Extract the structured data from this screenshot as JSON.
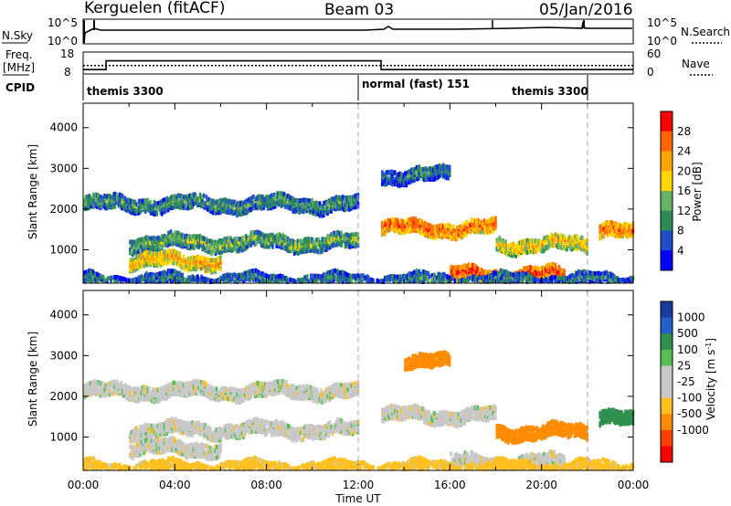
{
  "header": {
    "station": "Kerguelen (fitACF)",
    "beam": "Beam 03",
    "date": "05/Jan/2016"
  },
  "noise_panel": {
    "left_label": "N.Sky",
    "right_label": "N.Search",
    "left_ticks": [
      "10^5",
      "10^0"
    ],
    "right_ticks": [
      "10^5",
      "10^0"
    ]
  },
  "freq_panel": {
    "left_label_line1": "Freq.",
    "left_label_line2": "[MHz]",
    "right_label": "Nave",
    "left_ticks": [
      "18",
      "8"
    ],
    "right_ticks": [
      "60",
      "0"
    ],
    "freq_steps": [
      {
        "from_hour": 0.0,
        "to_hour": 1.0,
        "mhz": 10.0
      },
      {
        "from_hour": 1.0,
        "to_hour": 13.0,
        "mhz": 14.0
      },
      {
        "from_hour": 13.0,
        "to_hour": 24.0,
        "mhz": 10.0
      }
    ],
    "nave_level": 23
  },
  "cpid": {
    "label": "CPID",
    "segments": [
      {
        "text": "themis 3300",
        "start_hour": 0.0
      },
      {
        "text": "normal (fast) 151",
        "start_hour": 12.0
      },
      {
        "text": "themis 3300",
        "start_hour": 22.0
      }
    ],
    "boundaries_hours": [
      12.0,
      22.0
    ]
  },
  "chart_data": [
    {
      "type": "heatmap",
      "title": "Power",
      "ylabel": "Slant Range [km]",
      "xlabel": "Time UT",
      "x_range_hours": [
        0,
        24
      ],
      "ylim": [
        180,
        4600
      ],
      "y_ticks": [
        1000,
        2000,
        3000,
        4000
      ],
      "colorbar": {
        "label": "Power [dB]",
        "ticks": [
          "28",
          "24",
          "20",
          "16",
          "12",
          "8",
          "4"
        ],
        "colors": [
          "#0000ff",
          "#1e4fc8",
          "#2e8b57",
          "#66b266",
          "#ffd700",
          "#ffa500",
          "#ff6600",
          "#ff0000"
        ]
      },
      "echo_bands": [
        {
          "start_hour": 0.0,
          "end_hour": 12.0,
          "range_km": 2200,
          "power_db": 12
        },
        {
          "start_hour": 2.0,
          "end_hour": 12.0,
          "range_km": 1250,
          "power_db": 14
        },
        {
          "start_hour": 2.0,
          "end_hour": 6.0,
          "range_km": 800,
          "power_db": 22
        },
        {
          "start_hour": 13.0,
          "end_hour": 18.0,
          "range_km": 1600,
          "power_db": 26
        },
        {
          "start_hour": 18.0,
          "end_hour": 22.0,
          "range_km": 1200,
          "power_db": 20
        },
        {
          "start_hour": 16.0,
          "end_hour": 21.0,
          "range_km": 450,
          "power_db": 28
        },
        {
          "start_hour": 22.5,
          "end_hour": 24.0,
          "range_km": 1500,
          "power_db": 26
        },
        {
          "start_hour": 13.0,
          "end_hour": 16.0,
          "range_km": 2900,
          "power_db": 10
        },
        {
          "start_hour": 0.0,
          "end_hour": 24.0,
          "range_km": 300,
          "power_db": 10
        }
      ]
    },
    {
      "type": "heatmap",
      "title": "Velocity",
      "ylabel": "Slant Range [km]",
      "xlabel": "Time UT",
      "x_range_hours": [
        0,
        24
      ],
      "ylim": [
        180,
        4600
      ],
      "y_ticks": [
        1000,
        2000,
        3000,
        4000
      ],
      "x_ticks": [
        "00:00",
        "04:00",
        "08:00",
        "12:00",
        "16:00",
        "20:00",
        "00:00"
      ],
      "colorbar": {
        "label": "Velocity [m s",
        "label_sup": "-1",
        "label_end": "]",
        "ticks": [
          "1000",
          "500",
          "100",
          "25",
          "-25",
          "-100",
          "-500",
          "-1000"
        ],
        "colors": [
          "#1a3a9e",
          "#2060c8",
          "#2f8f4f",
          "#55c050",
          "#c8c8c8",
          "#c8c8c8",
          "#ffc020",
          "#ff8c00",
          "#ff4000",
          "#ff0000"
        ]
      },
      "echo_bands": [
        {
          "start_hour": 0.0,
          "end_hour": 12.0,
          "range_km": 2200,
          "velocity": 0
        },
        {
          "start_hour": 2.0,
          "end_hour": 12.0,
          "range_km": 1250,
          "velocity": 0
        },
        {
          "start_hour": 2.0,
          "end_hour": 6.0,
          "range_km": 800,
          "velocity": 0
        },
        {
          "start_hour": 13.0,
          "end_hour": 18.0,
          "range_km": 1600,
          "velocity": 0
        },
        {
          "start_hour": 18.0,
          "end_hour": 22.0,
          "range_km": 1200,
          "velocity": -150
        },
        {
          "start_hour": 16.0,
          "end_hour": 21.0,
          "range_km": 450,
          "velocity": 0
        },
        {
          "start_hour": 22.5,
          "end_hour": 24.0,
          "range_km": 1500,
          "velocity": 150
        },
        {
          "start_hour": 14.0,
          "end_hour": 16.0,
          "range_km": 2900,
          "velocity": -150
        },
        {
          "start_hour": 0.0,
          "end_hour": 24.0,
          "range_km": 300,
          "velocity": -50
        }
      ]
    }
  ]
}
